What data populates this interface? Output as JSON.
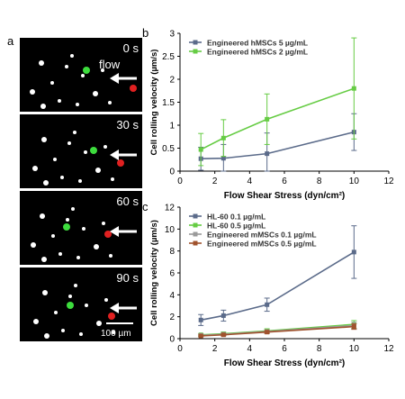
{
  "panel_a": {
    "label": "a",
    "flow_label": "flow",
    "scale_bar_label": "100 µm",
    "frames": [
      {
        "time": "0 s"
      },
      {
        "time": "30 s"
      },
      {
        "time": "60 s"
      },
      {
        "time": "90 s"
      }
    ],
    "colors": {
      "background": "#000000",
      "cells": "#ffffff",
      "tracked_cell_1": "#3ddc3d",
      "tracked_cell_2": "#e02020"
    }
  },
  "chart_data": [
    {
      "panel_label": "b",
      "type": "line",
      "xlabel": "Flow Shear Stress (dyn/cm²)",
      "ylabel": "Cell rolling velocity (µm/s)",
      "xlim": [
        0,
        12
      ],
      "ylim": [
        0,
        3
      ],
      "xticks": [
        "0",
        "2",
        "4",
        "6",
        "8",
        "10",
        "12"
      ],
      "yticks": [
        "0",
        "0.5",
        "1",
        "1.5",
        "2",
        "2.5",
        "3"
      ],
      "legend_position": "top-left",
      "series": [
        {
          "name": "Engineered hMSCs 5 µg/mL",
          "color": "#5b6b8a",
          "points": [
            {
              "x": 1.2,
              "y": 0.27,
              "err": 0.25
            },
            {
              "x": 2.5,
              "y": 0.28,
              "err": 0.3
            },
            {
              "x": 5,
              "y": 0.38,
              "err": 0.45
            },
            {
              "x": 10,
              "y": 0.85,
              "err": 0.4
            }
          ]
        },
        {
          "name": "Engineered hMSCs 2 µg/mL",
          "color": "#66cc44",
          "points": [
            {
              "x": 1.2,
              "y": 0.47,
              "err": 0.35
            },
            {
              "x": 2.5,
              "y": 0.72,
              "err": 0.4
            },
            {
              "x": 5,
              "y": 1.13,
              "err": 0.55
            },
            {
              "x": 10,
              "y": 1.8,
              "err": 1.1
            }
          ]
        }
      ]
    },
    {
      "panel_label": "c",
      "type": "line",
      "xlabel": "Flow Shear Stress (dyn/cm²)",
      "ylabel": "Cell rolling velocity (µm/s)",
      "xlim": [
        0,
        12
      ],
      "ylim": [
        0,
        12
      ],
      "xticks": [
        "0",
        "2",
        "4",
        "6",
        "8",
        "10",
        "12"
      ],
      "yticks": [
        "0",
        "2",
        "4",
        "6",
        "8",
        "10",
        "12"
      ],
      "legend_position": "top-left",
      "series": [
        {
          "name": "HL-60 0.1 µg/mL",
          "color": "#5b6b8a",
          "points": [
            {
              "x": 1.2,
              "y": 1.7,
              "err": 0.5
            },
            {
              "x": 2.5,
              "y": 2.1,
              "err": 0.5
            },
            {
              "x": 5,
              "y": 3.1,
              "err": 0.6
            },
            {
              "x": 10,
              "y": 7.9,
              "err": 2.4
            }
          ]
        },
        {
          "name": "HL-60 0.5 µg/mL",
          "color": "#66cc44",
          "points": [
            {
              "x": 1.2,
              "y": 0.35,
              "err": 0.1
            },
            {
              "x": 2.5,
              "y": 0.45,
              "err": 0.15
            },
            {
              "x": 5,
              "y": 0.7,
              "err": 0.2
            },
            {
              "x": 10,
              "y": 1.3,
              "err": 0.35
            }
          ]
        },
        {
          "name": "Engineered mMSCs 0.1 µg/mL",
          "color": "#9a9a9a",
          "points": [
            {
              "x": 1.2,
              "y": 0.3,
              "err": 0.1
            },
            {
              "x": 2.5,
              "y": 0.4,
              "err": 0.12
            },
            {
              "x": 5,
              "y": 0.65,
              "err": 0.15
            },
            {
              "x": 10,
              "y": 1.2,
              "err": 0.3
            }
          ]
        },
        {
          "name": "Engineered mMSCs 0.5 µg/mL",
          "color": "#a0522d",
          "points": [
            {
              "x": 1.2,
              "y": 0.25,
              "err": 0.08
            },
            {
              "x": 2.5,
              "y": 0.35,
              "err": 0.1
            },
            {
              "x": 5,
              "y": 0.6,
              "err": 0.12
            },
            {
              "x": 10,
              "y": 1.1,
              "err": 0.25
            }
          ]
        }
      ]
    }
  ]
}
